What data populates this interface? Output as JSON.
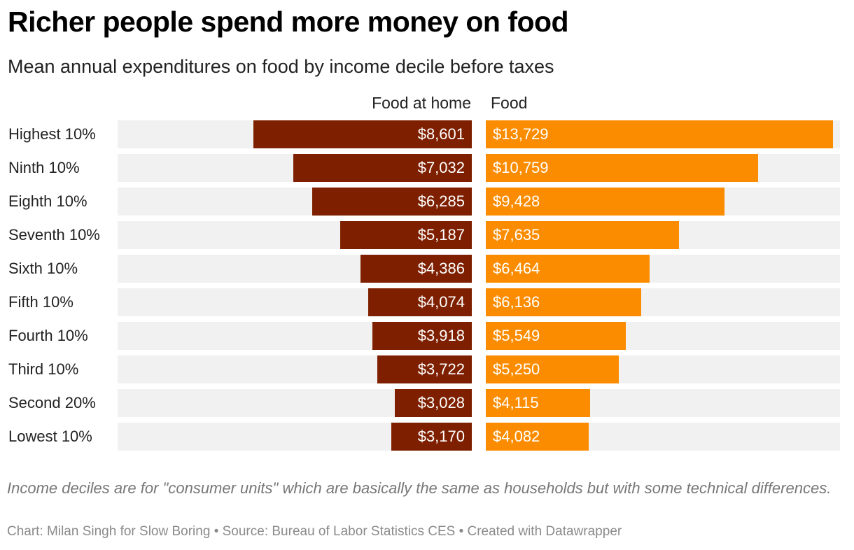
{
  "title": "Richer people spend more money on food",
  "subtitle": "Mean annual expenditures on food by income decile before taxes",
  "note": "Income deciles are for \"consumer units\" which are basically the same as households but with some technical differences.",
  "credit": "Chart: Milan Singh for Slow Boring • Source: Bureau of Labor Statistics CES • Created with Datawrapper",
  "colors": {
    "food_at_home": "#7e2000",
    "food": "#fb8c00",
    "track": "#f1f1f1"
  },
  "chart_data": {
    "type": "bar",
    "orientation": "horizontal",
    "layout": "split-bars",
    "categories": [
      "Highest 10%",
      "Ninth 10%",
      "Eighth 10%",
      "Seventh 10%",
      "Sixth 10%",
      "Fifth 10%",
      "Fourth 10%",
      "Third 10%",
      "Second 20%",
      "Lowest 10%"
    ],
    "series": [
      {
        "name": "Food at home",
        "values": [
          8601,
          7032,
          6285,
          5187,
          4386,
          4074,
          3918,
          3722,
          3028,
          3170
        ],
        "labels": [
          "$8,601",
          "$7,032",
          "$6,285",
          "$5,187",
          "$4,386",
          "$4,074",
          "$3,918",
          "$3,722",
          "$3,028",
          "$3,170"
        ]
      },
      {
        "name": "Food",
        "values": [
          13729,
          10759,
          9428,
          7635,
          6464,
          6136,
          5549,
          5250,
          4115,
          4082
        ],
        "labels": [
          "$13,729",
          "$10,759",
          "$9,428",
          "$7,635",
          "$6,464",
          "$6,136",
          "$5,549",
          "$5,250",
          "$4,115",
          "$4,082"
        ]
      }
    ]
  }
}
